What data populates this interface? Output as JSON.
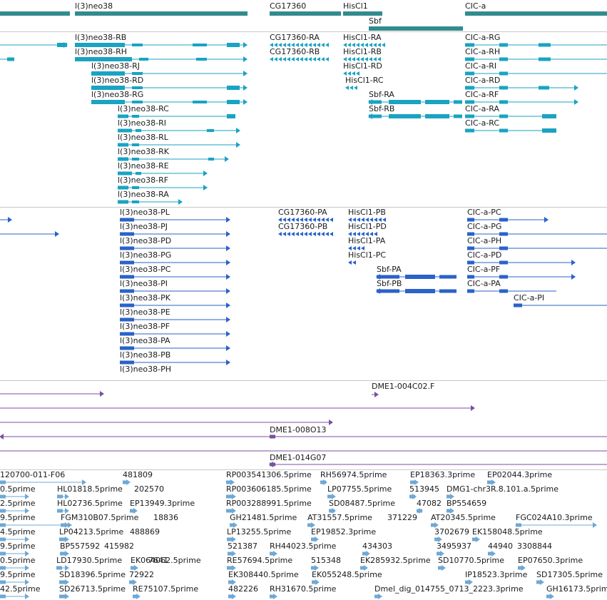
{
  "colors": {
    "gene": "#318c8e",
    "transcript": "#1aa3c2",
    "cds": "#2a62c9",
    "clone": "#7a4fa3",
    "est": "#6fa8d4",
    "divider": "#c8c8c8"
  },
  "genes_track": {
    "labels": [
      "l(3)neo38",
      "CG17360",
      "HisCl1",
      "Sbf",
      "CIC-a"
    ]
  },
  "transcripts_track": {
    "labels": [
      "l(3)neo38-RB",
      "CG17360-RA",
      "HisCl1-RA",
      "CIC-a-RG",
      "l(3)neo38-RH",
      "CG17360-RB",
      "HisCl1-RB",
      "CIC-a-RH",
      "l(3)neo38-RJ",
      "HisCl1-RD",
      "CIC-a-RI",
      "l(3)neo38-RD",
      "HisCl1-RC",
      "CIC-a-RD",
      "l(3)neo38-RG",
      "Sbf-RA",
      "CIC-a-RF",
      "l(3)neo38-RC",
      "Sbf-RB",
      "CIC-a-RA",
      "l(3)neo38-RI",
      "CIC-a-RC",
      "l(3)neo38-RL",
      "l(3)neo38-RK",
      "l(3)neo38-RE",
      "l(3)neo38-RF",
      "l(3)neo38-RA"
    ]
  },
  "proteins_track": {
    "labels": [
      "l(3)neo38-PL",
      "CG17360-PA",
      "HisCl1-PB",
      "CIC-a-PC",
      "l(3)neo38-PJ",
      "CG17360-PB",
      "HisCl1-PD",
      "CIC-a-PG",
      "l(3)neo38-PD",
      "HisCl1-PA",
      "CIC-a-PH",
      "l(3)neo38-PG",
      "HisCl1-PC",
      "CIC-a-PD",
      "l(3)neo38-PC",
      "Sbf-PA",
      "CIC-a-PF",
      "l(3)neo38-PI",
      "Sbf-PB",
      "CIC-a-PA",
      "l(3)neo38-PK",
      "CIC-a-PI",
      "l(3)neo38-PE",
      "l(3)neo38-PF",
      "l(3)neo38-PA",
      "l(3)neo38-PB",
      "l(3)neo38-PH"
    ]
  },
  "clones_track": {
    "labels": [
      "DME1-004C02.F",
      "DME1-008O13",
      "DME1-014G07"
    ]
  },
  "ests_track": {
    "labels": [
      "120700-011-F06",
      "481809",
      "RP003541306.5prime",
      "RH56974.5prime",
      "EP18363.3prime",
      "EP02044.3prime",
      "0.5prime",
      "HL01818.5prime",
      "202570",
      "RP003606185.5prime",
      "LP07755.5prime",
      "513945",
      "DMG1-chr3R.8.101.a.5prime",
      "2.5prime",
      "HL02736.5prime",
      "EP13949.3prime",
      "RP003288991.5prime",
      "SD08487.5prime",
      "47082",
      "BP554659",
      "9.5prime",
      "FGM310B07.5prime",
      "18836",
      "GH21481.5prime",
      "AT31557.5prime",
      "371229",
      "AT20345.5prime",
      "FGC024A10.3prime",
      "4.5prime",
      "LP04213.5prime",
      "488869",
      "LP13255.5prime",
      "EP19852.3prime",
      "3702679",
      "EK158048.5prime",
      "9.5prime",
      "BP557592",
      "415982",
      "521387",
      "RH44023.5prime",
      "434303",
      "3495937",
      "44940",
      "3308844",
      "0.5prime",
      "LD17930.5prime",
      "7641",
      "EK064062.5prime",
      "RE57694.5prime",
      "515348",
      "EK285932.5prime",
      "SD10770.5prime",
      "EP07650.3prime",
      "9.5prime",
      "SD18396.5prime",
      "72922",
      "EK308440.5prime",
      "EK055248.5prime",
      "IP18523.3prime",
      "SD17305.5prime",
      "42.5prime",
      "SD26713.5prime",
      "RE75107.5prime",
      "482226",
      "RH31670.5prime",
      "Dmel_dig_014755_0713_2223.3prime",
      "GH16173.5prime"
    ]
  }
}
